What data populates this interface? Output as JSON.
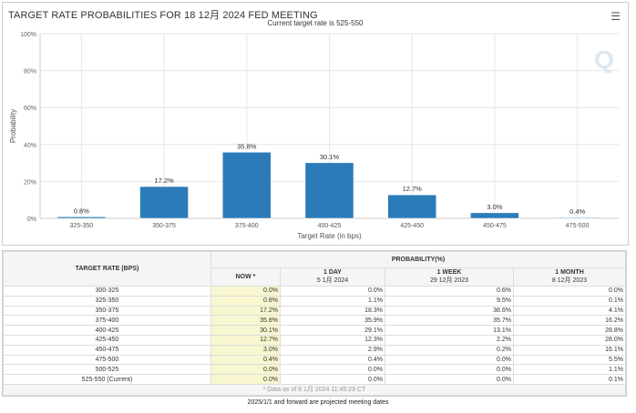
{
  "title": "TARGET RATE PROBABILITIES FOR 18 12月 2024 FED MEETING",
  "subtitle": "Current target rate is 525-550",
  "menu_icon": "hamburger-menu-icon",
  "watermark_icon": "q-logo-icon",
  "chart_data": {
    "type": "bar",
    "categories": [
      "325-350",
      "350-375",
      "375-400",
      "400-425",
      "425-450",
      "450-475",
      "475-500"
    ],
    "values": [
      0.8,
      17.2,
      35.8,
      30.1,
      12.7,
      3.0,
      0.4
    ],
    "data_labels": [
      "0.8%",
      "17.2%",
      "35.8%",
      "30.1%",
      "12.7%",
      "3.0%",
      "0.4%"
    ],
    "xlabel": "Target Rate (in bps)",
    "ylabel": "Probability",
    "ylim": [
      0,
      100
    ],
    "yticks": [
      "0%",
      "20%",
      "40%",
      "60%",
      "80%",
      "100%"
    ],
    "grid": true,
    "bar_color": "#2b7bb9"
  },
  "table": {
    "rate_header": "TARGET RATE (BPS)",
    "prob_header": "PROBABILITY(%)",
    "cols": [
      {
        "label": "NOW *",
        "sub": ""
      },
      {
        "label": "1 DAY",
        "sub": "5 1月 2024"
      },
      {
        "label": "1 WEEK",
        "sub": "29 12月 2023"
      },
      {
        "label": "1 MONTH",
        "sub": "8 12月 2023"
      }
    ],
    "rows": [
      [
        "300-325",
        "0.0%",
        "0.0%",
        "0.6%",
        "0.0%"
      ],
      [
        "325-350",
        "0.8%",
        "1.1%",
        "9.5%",
        "0.1%"
      ],
      [
        "350-375",
        "17.2%",
        "18.3%",
        "38.6%",
        "4.1%"
      ],
      [
        "375-400",
        "35.8%",
        "35.9%",
        "35.7%",
        "16.2%"
      ],
      [
        "400-425",
        "30.1%",
        "29.1%",
        "13.1%",
        "28.8%"
      ],
      [
        "425-450",
        "12.7%",
        "12.3%",
        "2.2%",
        "28.0%"
      ],
      [
        "450-475",
        "3.0%",
        "2.9%",
        "0.2%",
        "16.1%"
      ],
      [
        "475-500",
        "0.4%",
        "0.4%",
        "0.0%",
        "5.5%"
      ],
      [
        "500-525",
        "0.0%",
        "0.0%",
        "0.0%",
        "1.1%"
      ],
      [
        "525-550 (Current)",
        "0.0%",
        "0.0%",
        "0.0%",
        "0.1%"
      ]
    ],
    "footnote": "* Data as of 8 1月 2024 11:45:29 CT"
  },
  "bottom_note": "2025/1/1 and forward are projected meeting dates"
}
